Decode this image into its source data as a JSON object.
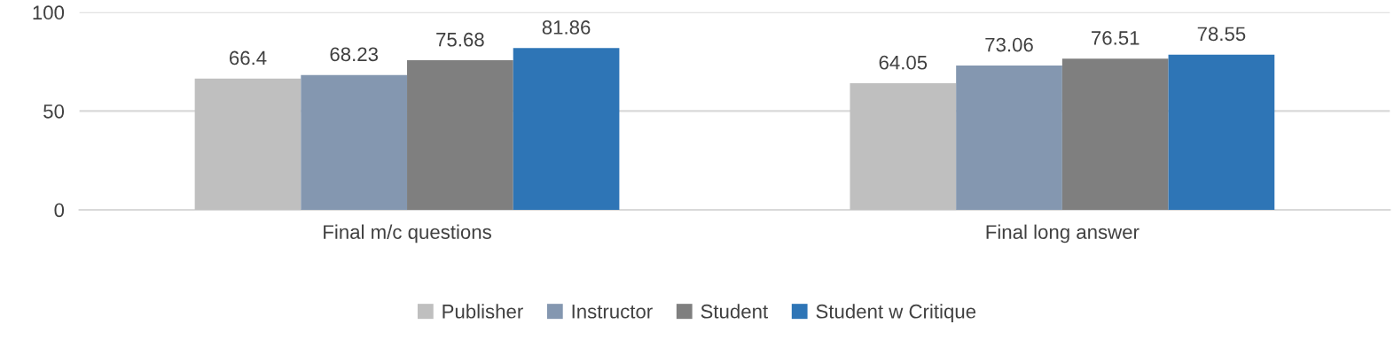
{
  "chart_data": {
    "type": "bar",
    "categories": [
      "Final m/c questions",
      "Final long answer"
    ],
    "series": [
      {
        "name": "Publisher",
        "color": "#bfbfbf",
        "values": [
          66.4,
          64.05
        ]
      },
      {
        "name": "Instructor",
        "color": "#8497b0",
        "values": [
          68.23,
          73.06
        ]
      },
      {
        "name": "Student",
        "color": "#7f7f7f",
        "values": [
          75.68,
          76.51
        ]
      },
      {
        "name": "Student w Critique",
        "color": "#2e75b6",
        "values": [
          81.86,
          78.55
        ]
      }
    ],
    "ylim": [
      0,
      100
    ],
    "yticks": [
      0,
      50,
      100
    ],
    "grid": "y",
    "legend": "bottom",
    "data_labels": true
  }
}
